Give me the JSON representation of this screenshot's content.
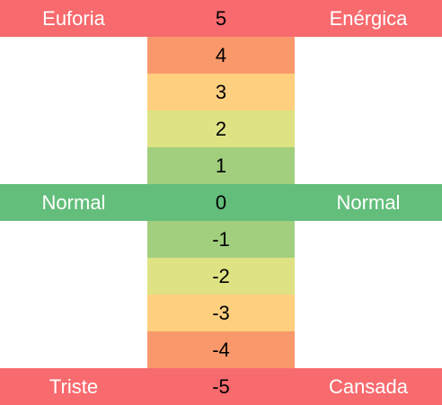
{
  "colors": {
    "red": "#f76a6e",
    "orange": "#f9996b",
    "amber": "#fdcf7f",
    "yellowgreen": "#dee283",
    "lightgreen": "#a1cf7d",
    "green": "#63be7b",
    "text_dark": "#000000",
    "text_light": "#ffffff"
  },
  "rows": [
    {
      "value": "5",
      "left": "Euforia",
      "right": "Enérgica",
      "full": true,
      "color": "#f76a6e"
    },
    {
      "value": "4",
      "left": "",
      "right": "",
      "full": false,
      "color": "#f9996b"
    },
    {
      "value": "3",
      "left": "",
      "right": "",
      "full": false,
      "color": "#fdcf7f"
    },
    {
      "value": "2",
      "left": "",
      "right": "",
      "full": false,
      "color": "#dee283"
    },
    {
      "value": "1",
      "left": "",
      "right": "",
      "full": false,
      "color": "#a1cf7d"
    },
    {
      "value": "0",
      "left": "Normal",
      "right": "Normal",
      "full": true,
      "color": "#63be7b"
    },
    {
      "value": "-1",
      "left": "",
      "right": "",
      "full": false,
      "color": "#a1cf7d"
    },
    {
      "value": "-2",
      "left": "",
      "right": "",
      "full": false,
      "color": "#dee283"
    },
    {
      "value": "-3",
      "left": "",
      "right": "",
      "full": false,
      "color": "#fdcf7f"
    },
    {
      "value": "-4",
      "left": "",
      "right": "",
      "full": false,
      "color": "#f9996b"
    },
    {
      "value": "-5",
      "left": "Triste",
      "right": "Cansada",
      "full": true,
      "color": "#f76a6e"
    }
  ]
}
